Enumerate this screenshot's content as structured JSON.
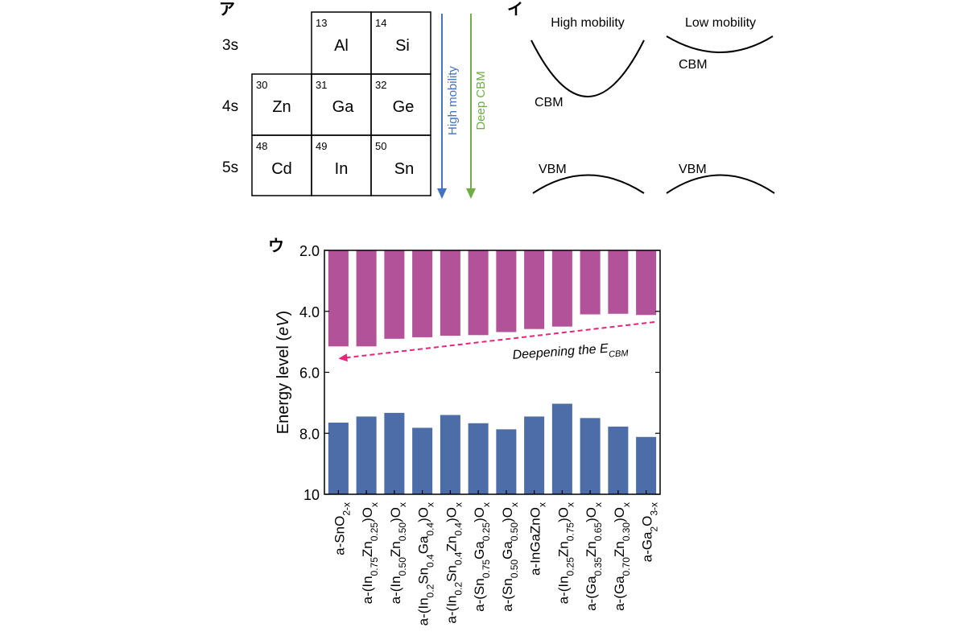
{
  "panels": {
    "a_label": "ア",
    "b_label": "イ",
    "c_label": "ウ"
  },
  "periodic_table": {
    "row_labels": [
      "3s",
      "4s",
      "5s"
    ],
    "cells": [
      {
        "number": "13",
        "symbol": "Al"
      },
      {
        "number": "14",
        "symbol": "Si"
      },
      {
        "number": "30",
        "symbol": "Zn"
      },
      {
        "number": "31",
        "symbol": "Ga"
      },
      {
        "number": "32",
        "symbol": "Ge"
      },
      {
        "number": "48",
        "symbol": "Cd"
      },
      {
        "number": "49",
        "symbol": "In"
      },
      {
        "number": "50",
        "symbol": "Sn"
      }
    ],
    "arrow_high_mobility": {
      "label": "High mobility",
      "color": "#4472c4"
    },
    "arrow_deep_cbm": {
      "label": "Deep CBM",
      "color": "#70ad47"
    }
  },
  "band_diagram": {
    "high_title": "High mobility",
    "low_title": "Low mobility",
    "high_cbm": "CBM",
    "low_cbm": "CBM",
    "high_vbm": "VBM",
    "low_vbm": "VBM"
  },
  "chart_data": {
    "type": "bar",
    "ylabel": "Energy level (eV)",
    "ylim": [
      10,
      2
    ],
    "y_ticks": [
      "2.0",
      "4.0",
      "6.0",
      "8.0",
      "10"
    ],
    "y_tick_values": [
      2,
      4,
      6,
      8,
      10
    ],
    "y_inverted": true,
    "categories": [
      [
        "a-SnO",
        {
          "t": "2-x",
          "s": "sub"
        }
      ],
      [
        "a-(In",
        {
          "t": "0.75",
          "s": "sub"
        },
        "Zn",
        {
          "t": "0.25",
          "s": "sub"
        },
        ")O",
        {
          "t": "x",
          "s": "sub"
        }
      ],
      [
        "a-(In",
        {
          "t": "0.50",
          "s": "sub"
        },
        "Zn",
        {
          "t": "0.50",
          "s": "sub"
        },
        ")O",
        {
          "t": "x",
          "s": "sub"
        }
      ],
      [
        "a-(In",
        {
          "t": "0.2",
          "s": "sub"
        },
        "Sn",
        {
          "t": "0.4",
          "s": "sub"
        },
        "Ga",
        {
          "t": "0.4",
          "s": "sub"
        },
        ")O",
        {
          "t": "x",
          "s": "sub"
        }
      ],
      [
        "a-(In",
        {
          "t": "0.2",
          "s": "sub"
        },
        "Sn",
        {
          "t": "0.4",
          "s": "sub"
        },
        "Zn",
        {
          "t": "0.4",
          "s": "sub"
        },
        ")O",
        {
          "t": "x",
          "s": "sub"
        }
      ],
      [
        "a-(Sn",
        {
          "t": "0.75",
          "s": "sub"
        },
        "Ga",
        {
          "t": "0.25",
          "s": "sub"
        },
        ")O",
        {
          "t": "x",
          "s": "sub"
        }
      ],
      [
        "a-(Sn",
        {
          "t": "0.50",
          "s": "sub"
        },
        "Ga",
        {
          "t": "0.50",
          "s": "sub"
        },
        ")O",
        {
          "t": "x",
          "s": "sub"
        }
      ],
      [
        "a-InGaZnO",
        {
          "t": "x",
          "s": "sub"
        }
      ],
      [
        "a-(In",
        {
          "t": "0.25",
          "s": "sub"
        },
        "Zn",
        {
          "t": "0.75",
          "s": "sub"
        },
        ")O",
        {
          "t": "x",
          "s": "sub"
        }
      ],
      [
        "a-(Ga",
        {
          "t": "0.35",
          "s": "sub"
        },
        "Zn",
        {
          "t": "0.65",
          "s": "sub"
        },
        ")O",
        {
          "t": "x",
          "s": "sub"
        }
      ],
      [
        "a-(Ga",
        {
          "t": "0.70",
          "s": "sub"
        },
        "Zn",
        {
          "t": "0.30",
          "s": "sub"
        },
        ")O",
        {
          "t": "x",
          "s": "sub"
        }
      ],
      [
        "a-Ga",
        {
          "t": "2",
          "s": "sub"
        },
        "O",
        {
          "t": "3-x",
          "s": "sub"
        }
      ]
    ],
    "series": [
      {
        "role": "CBM bars (from 2.0 eV)",
        "color": "#b25399",
        "base": 2.0,
        "values": [
          5.15,
          5.15,
          4.9,
          4.85,
          4.8,
          4.78,
          4.68,
          4.58,
          4.5,
          4.1,
          4.08,
          4.12
        ]
      },
      {
        "role": "VBM bars (from 10 eV)",
        "color": "#4d6da8",
        "base": 10.0,
        "values": [
          7.65,
          7.45,
          7.33,
          7.82,
          7.4,
          7.67,
          7.87,
          7.45,
          7.03,
          7.5,
          7.78,
          8.12
        ]
      }
    ],
    "annotation": {
      "text": "Deepening the E",
      "subscript": "CBM",
      "color": "#e8247a",
      "from": [
        12.3,
        4.35
      ],
      "to": [
        1.0,
        5.55
      ]
    }
  }
}
